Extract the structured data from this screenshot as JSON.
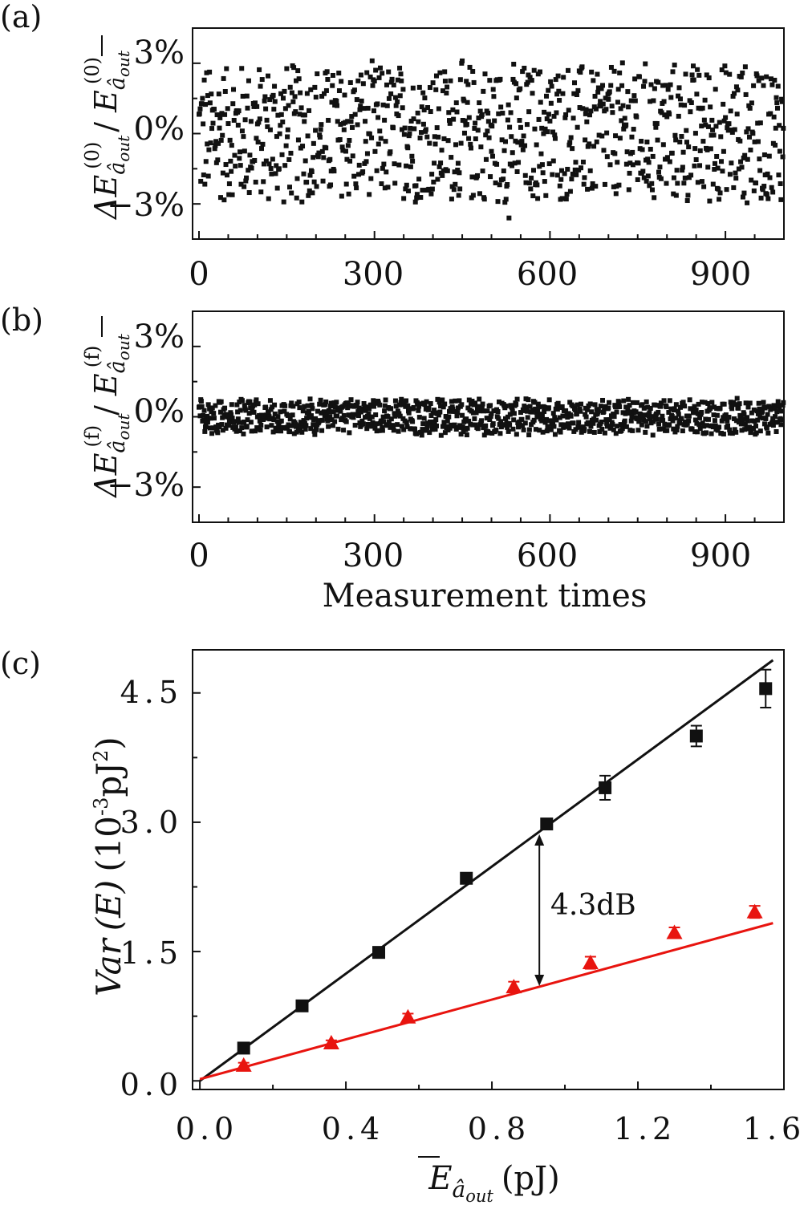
{
  "chart_data": [
    {
      "panel_label": "(a)",
      "type": "scatter",
      "ylabel": "ΔE_{â_out}^{(0)} / Ē_{â_out}^{(0)}",
      "ylabel_main": "ΔE",
      "ylabel_sub": "â",
      "ylabel_subsub": "out",
      "ylabel_sup": "(0)",
      "ylabel_div": "/",
      "ylabel_den": "E",
      "xlim": [
        0,
        1000
      ],
      "ylim": [
        -4.5,
        4.5
      ],
      "x_ticks": [
        0,
        300,
        600,
        900
      ],
      "x_tick_labels": [
        "0",
        "300",
        "600",
        "900"
      ],
      "y_ticks": [
        3,
        0,
        -3
      ],
      "y_tick_labels": [
        "3%",
        "0%",
        "−3%"
      ],
      "marker": "square",
      "color": "#111111",
      "n_points": 1000,
      "spread_percent": 3.2,
      "outlier_min_percent": -3.6,
      "outlier_max_percent": 3.1
    },
    {
      "panel_label": "(b)",
      "type": "scatter",
      "xlabel": "Measurement times",
      "ylabel": "ΔE_{â_out}^{(f)} / Ē_{â_out}^{(f)}",
      "ylabel_main": "ΔE",
      "ylabel_sub": "â",
      "ylabel_subsub": "out",
      "ylabel_sup": "(f)",
      "ylabel_div": "/",
      "ylabel_den": "E",
      "xlim": [
        0,
        1000
      ],
      "ylim": [
        -4.5,
        4.5
      ],
      "x_ticks": [
        0,
        300,
        600,
        900
      ],
      "x_tick_labels": [
        "0",
        "300",
        "600",
        "900"
      ],
      "y_ticks": [
        3,
        0,
        -3
      ],
      "y_tick_labels": [
        "3%",
        "0%",
        "−3%"
      ],
      "marker": "square",
      "color": "#111111",
      "n_points": 1000,
      "spread_percent": 0.8
    },
    {
      "panel_label": "(c)",
      "type": "scatter",
      "xlabel": "Ē_{â_out} (pJ)",
      "xlabel_main": "E",
      "xlabel_sub": "â",
      "xlabel_subsub": "out",
      "xlabel_unit": "(pJ)",
      "ylabel": "Var (E) (10^-3 pJ^2)",
      "ylabel_var": "Var",
      "ylabel_arg": "(E)",
      "ylabel_unit_open": "(10",
      "ylabel_unit_exp": "-3",
      "ylabel_unit_mid": "pJ",
      "ylabel_unit_exp2": "2",
      "ylabel_unit_close": ")",
      "xlim": [
        -0.02,
        1.6
      ],
      "ylim": [
        -0.1,
        5.0
      ],
      "x_ticks": [
        0.0,
        0.4,
        0.8,
        1.2,
        1.6
      ],
      "x_tick_labels": [
        "0.0",
        "0.4",
        "0.8",
        "1.2",
        "1.6"
      ],
      "y_ticks": [
        0.0,
        1.5,
        3.0,
        4.5
      ],
      "y_tick_labels": [
        "0.0",
        "1.5",
        "3.0",
        "4.5"
      ],
      "series": [
        {
          "marker": "square",
          "color": "#111111",
          "x": [
            0.12,
            0.28,
            0.49,
            0.73,
            0.95,
            1.11,
            1.36,
            1.55
          ],
          "y": [
            0.38,
            0.87,
            1.49,
            2.35,
            2.98,
            3.4,
            4.0,
            4.55
          ],
          "err": [
            0.03,
            0.04,
            0.04,
            0.05,
            0.05,
            0.14,
            0.12,
            0.22
          ],
          "fit": {
            "x0": 0.0,
            "x1": 1.57,
            "y0": 0.0,
            "y1": 4.88
          }
        },
        {
          "marker": "triangle",
          "color": "#e8140f",
          "x": [
            0.12,
            0.36,
            0.57,
            0.86,
            1.07,
            1.3,
            1.52
          ],
          "y": [
            0.18,
            0.44,
            0.74,
            1.09,
            1.37,
            1.72,
            1.96
          ],
          "err": [
            0.03,
            0.03,
            0.04,
            0.06,
            0.07,
            0.06,
            0.07
          ],
          "fit": {
            "x0": 0.0,
            "x1": 1.57,
            "y0": 0.02,
            "y1": 1.83
          }
        }
      ],
      "annotation": {
        "text": "4.3dB",
        "x": 0.93,
        "y_top": 2.86,
        "y_bottom": 1.1
      }
    }
  ]
}
